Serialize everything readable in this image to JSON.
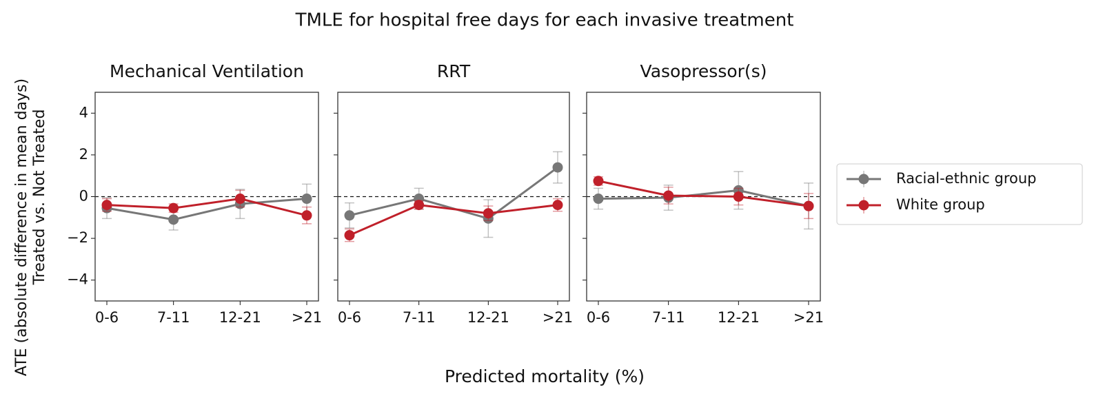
{
  "figure": {
    "title": "TMLE for hospital free days for each invasive treatment",
    "xlabel": "Predicted mortality (%)",
    "ylabel": [
      "ATE (absolute difference in mean days)",
      "Treated vs. Not Treated"
    ]
  },
  "chart_data": [
    {
      "type": "line",
      "title": "Mechanical Ventilation",
      "categories": [
        "0-6",
        "7-11",
        "12-21",
        ">21"
      ],
      "series": [
        {
          "name": "Racial-ethnic group",
          "color": "#777777",
          "values": [
            -0.55,
            -1.1,
            -0.35,
            -0.1
          ],
          "errors": [
            0.5,
            0.5,
            0.7,
            0.7
          ]
        },
        {
          "name": "White group",
          "color": "#c0202a",
          "values": [
            -0.4,
            -0.55,
            -0.1,
            -0.9
          ],
          "errors": [
            0.3,
            0.2,
            0.4,
            0.4
          ]
        }
      ],
      "ylim": [
        -5,
        5
      ],
      "yticks": [
        {
          "value": -4,
          "label": "−4"
        },
        {
          "value": -2,
          "label": "−2"
        },
        0,
        2,
        4
      ],
      "reference_line": 0
    },
    {
      "type": "line",
      "title": "RRT",
      "categories": [
        "0-6",
        "7-11",
        "12-21",
        ">21"
      ],
      "series": [
        {
          "name": "Racial-ethnic group",
          "color": "#777777",
          "values": [
            -0.9,
            -0.1,
            -1.05,
            1.4
          ],
          "errors": [
            0.6,
            0.5,
            0.9,
            0.75
          ]
        },
        {
          "name": "White group",
          "color": "#c0202a",
          "values": [
            -1.85,
            -0.4,
            -0.8,
            -0.4
          ],
          "errors": [
            0.3,
            0.2,
            0.35,
            0.3
          ]
        }
      ],
      "ylim": [
        -5,
        5
      ],
      "yticks": [
        -4,
        -2,
        0,
        2,
        4
      ],
      "reference_line": 0
    },
    {
      "type": "line",
      "title": "Vasopressor(s)",
      "categories": [
        "0-6",
        "7-11",
        "12-21",
        ">21"
      ],
      "series": [
        {
          "name": "Racial-ethnic group",
          "color": "#777777",
          "values": [
            -0.1,
            -0.05,
            0.3,
            -0.45
          ],
          "errors": [
            0.5,
            0.6,
            0.9,
            1.1
          ]
        },
        {
          "name": "White group",
          "color": "#c0202a",
          "values": [
            0.75,
            0.05,
            0.0,
            -0.45
          ],
          "errors": [
            0.2,
            0.4,
            0.4,
            0.6
          ]
        }
      ],
      "ylim": [
        -5,
        5
      ],
      "yticks": [
        -4,
        -2,
        0,
        2,
        4
      ],
      "reference_line": 0
    }
  ]
}
